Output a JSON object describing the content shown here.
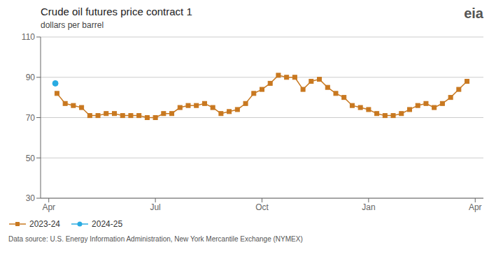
{
  "chart_data": {
    "type": "line",
    "title": "Crude oil futures  price contract  1",
    "subtitle": "dollars per barrel",
    "source": "Data source:  U.S. Energy Information Administration, New York Mercantile Exchange (NYMEX)",
    "annotations": [
      "eia"
    ],
    "xlim": [
      -1,
      53
    ],
    "xticks": [
      {
        "value": 0,
        "label": "Apr"
      },
      {
        "value": 13,
        "label": "Jul"
      },
      {
        "value": 26,
        "label": "Oct"
      },
      {
        "value": 39,
        "label": "Jan"
      },
      {
        "value": 52,
        "label": "Apr"
      }
    ],
    "ylim": [
      30,
      110
    ],
    "yticks": [
      30,
      50,
      70,
      90,
      110
    ],
    "grid": true,
    "legend": "lower right",
    "series": [
      {
        "name": "2023-24",
        "color": "#c87820",
        "marker": "square",
        "x": [
          1,
          2,
          3,
          4,
          5,
          6,
          7,
          8,
          9,
          10,
          11,
          12,
          13,
          14,
          15,
          16,
          17,
          18,
          19,
          20,
          21,
          22,
          23,
          24,
          25,
          26,
          27,
          28,
          29,
          30,
          31,
          32,
          33,
          34,
          35,
          36,
          37,
          38,
          39,
          40,
          41,
          42,
          43,
          44,
          45,
          46,
          47,
          48,
          49,
          50,
          51
        ],
        "values": [
          82,
          77,
          76,
          75,
          71,
          71,
          72,
          72,
          71,
          71,
          71,
          70,
          70,
          72,
          72,
          75,
          76,
          76,
          77,
          75,
          72,
          73,
          74,
          77,
          82,
          84,
          87,
          91,
          90,
          90,
          84,
          88,
          89,
          85,
          82,
          80,
          76,
          75,
          74,
          72,
          71,
          71,
          72,
          74,
          76,
          77,
          75,
          77,
          80,
          84,
          88
        ]
      },
      {
        "name": "2024-25",
        "color": "#29abe2",
        "marker": "circle",
        "x": [
          0.8
        ],
        "values": [
          87
        ]
      }
    ]
  }
}
